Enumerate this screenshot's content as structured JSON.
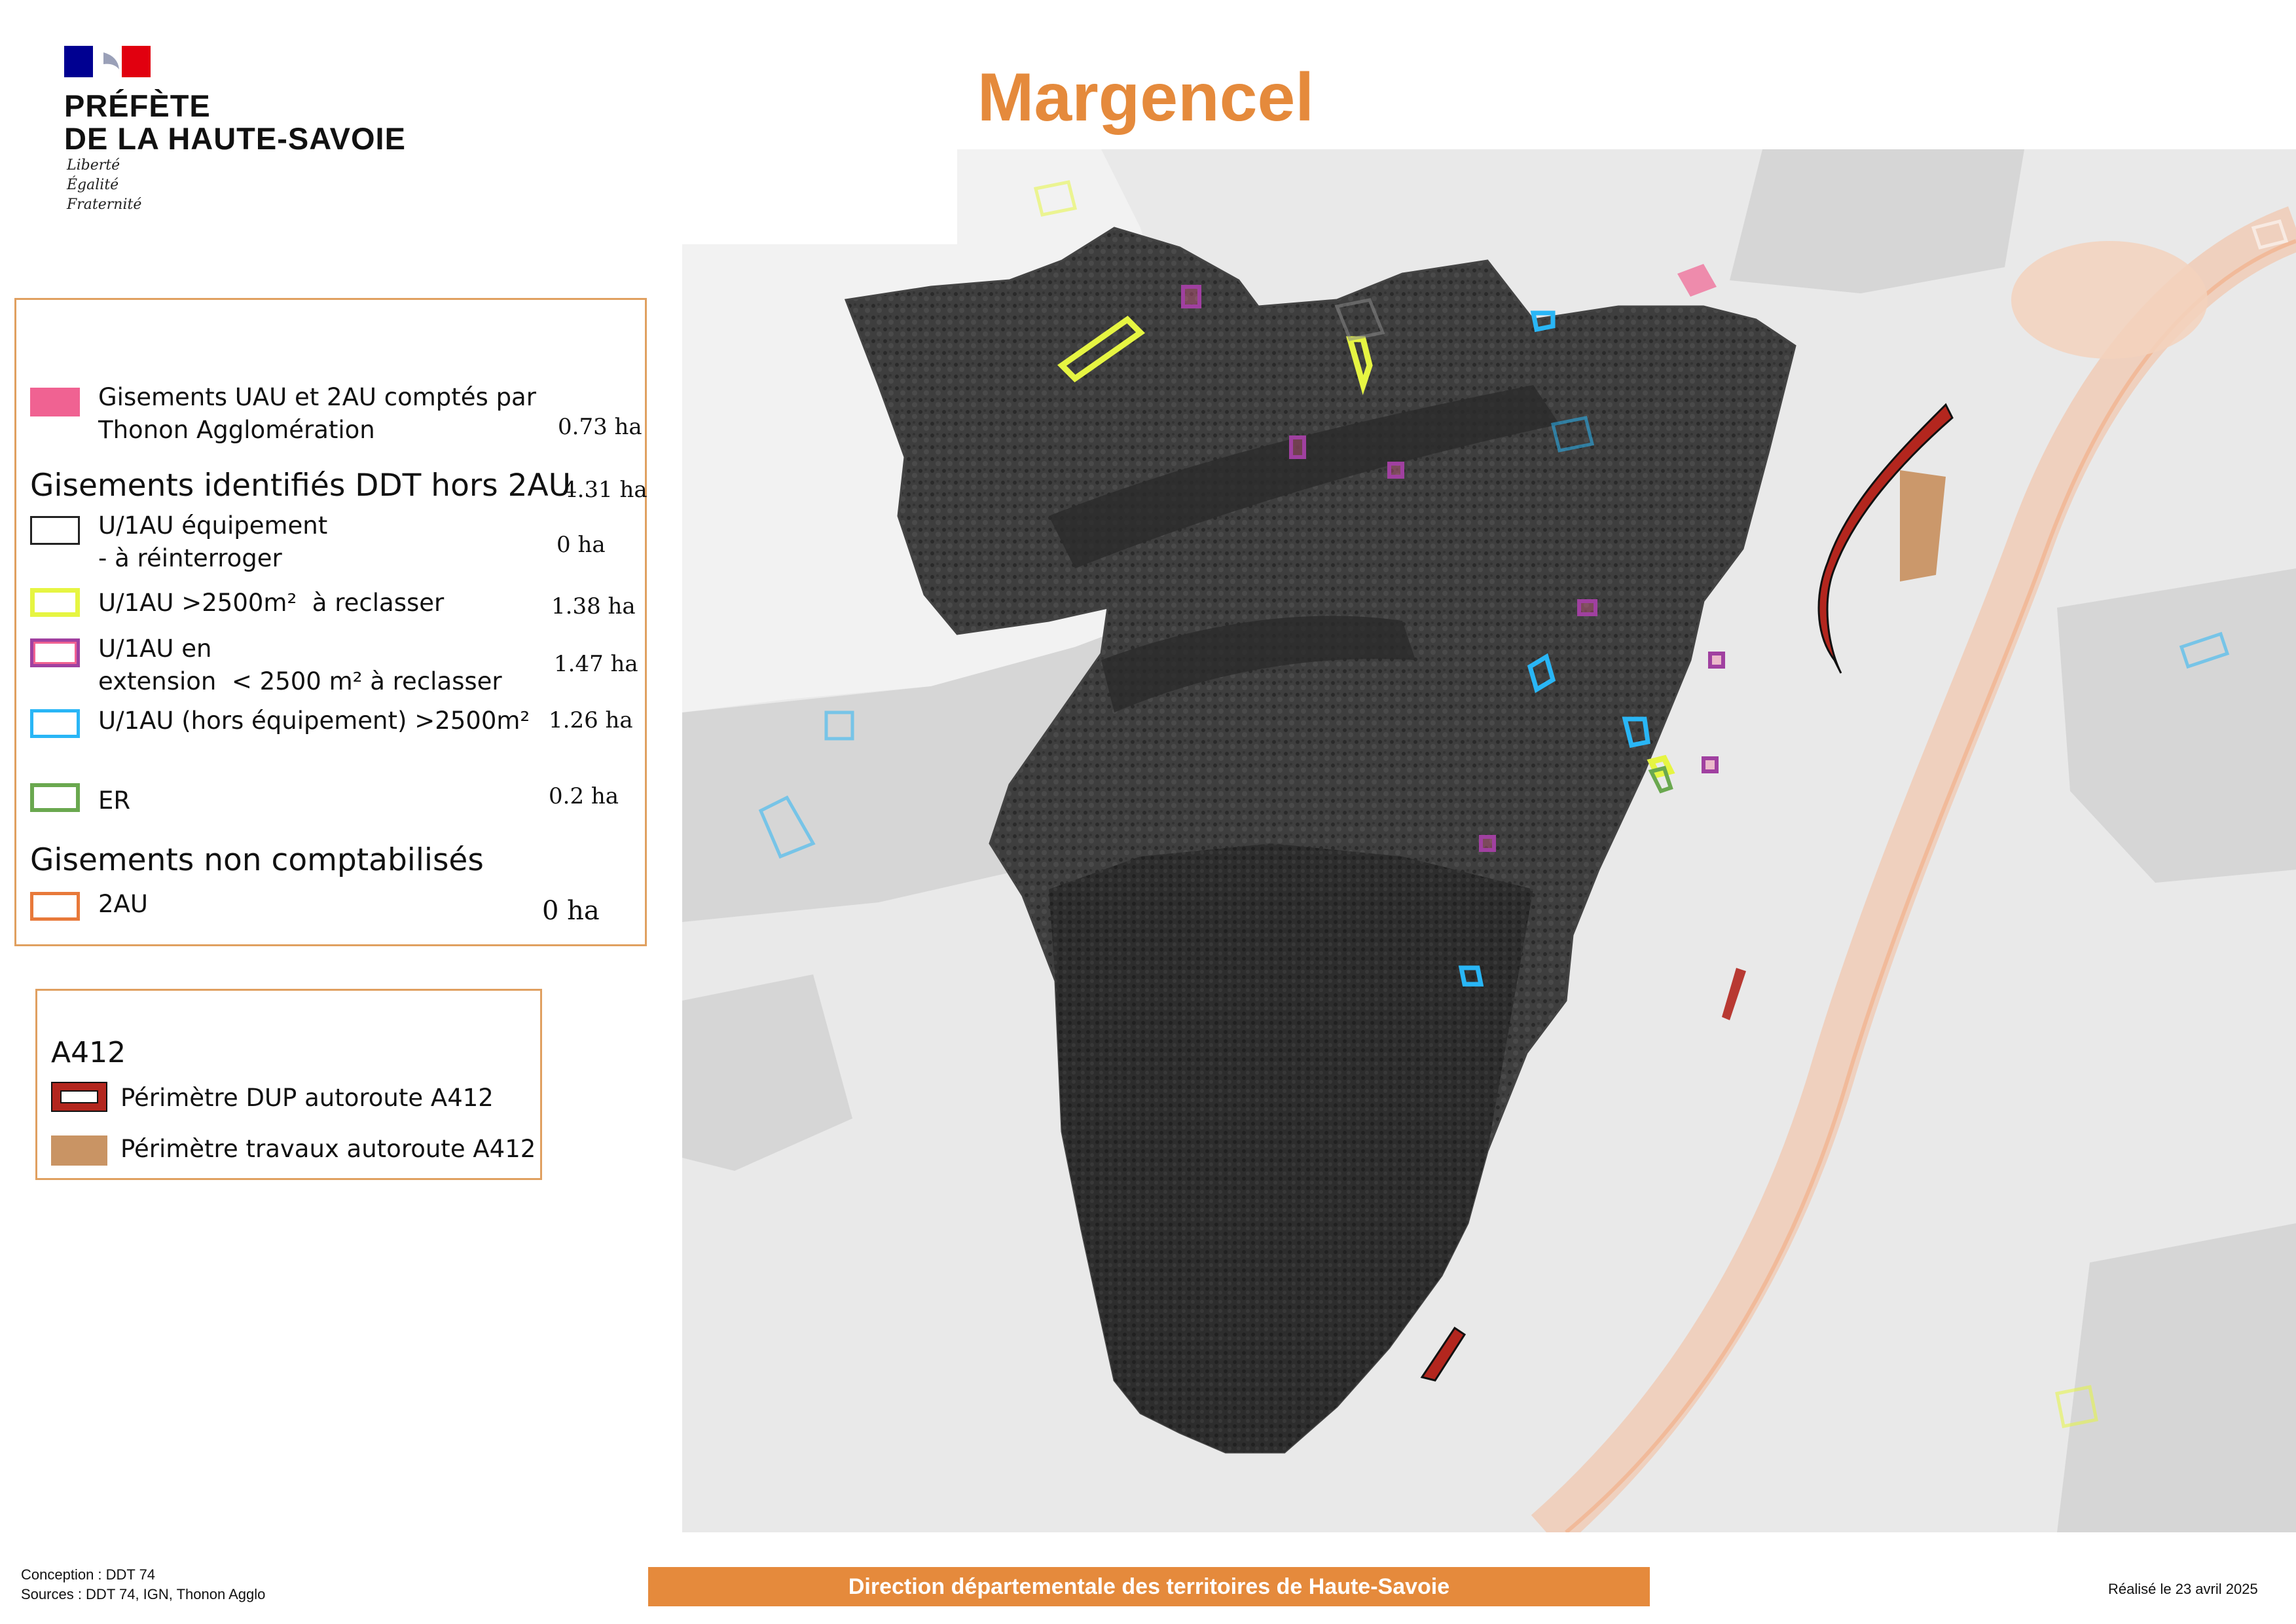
{
  "header": {
    "logo_lines": [
      "PRÉFÈTE",
      "DE LA HAUTE-SAVOIE"
    ],
    "motto": [
      "Liberté",
      "Égalité",
      "Fraternité"
    ],
    "title": "Margencel"
  },
  "legend": {
    "items": [
      {
        "label": "Gisements UAU et 2AU comptés par\nThonon Agglomération",
        "value": "0.73 ha",
        "color": "#f06292"
      },
      {
        "heading": "Gisements identifiés DDT hors 2AU",
        "value": "4.31 ha"
      },
      {
        "label": "U/1AU équipement\n- à réinterroger",
        "value": "0 ha",
        "color": "#222222"
      },
      {
        "label": "U/1AU >2500m²  à reclasser",
        "value": "1.38 ha",
        "color": "#e6f542"
      },
      {
        "label": "U/1AU en\nextension  < 2500 m² à reclasser",
        "value": "1.47 ha",
        "color": "#a040a0"
      },
      {
        "label": "U/1AU (hors équipement) >2500m²",
        "value": "1.26 ha",
        "color": "#29b6f6"
      },
      {
        "label": "ER",
        "value": "0.2 ha",
        "color": "#6aa84f"
      },
      {
        "heading": "Gisements non comptabilisés"
      },
      {
        "label": "2AU",
        "value": "0 ha",
        "color": "#e8793a"
      }
    ]
  },
  "legend_a412": {
    "title": "A412",
    "items": [
      {
        "label": "Périmètre DUP autoroute A412",
        "color": "#b3261e"
      },
      {
        "label": "Périmètre travaux autoroute A412",
        "color": "#c99464"
      }
    ]
  },
  "footer": {
    "conception": "Conception : DDT 74",
    "sources": "Sources : DDT 74, IGN, Thonon Agglo",
    "bar": "Direction départementale des territoires de Haute-Savoie",
    "date": "Réalisé le 23 avril 2025"
  },
  "colors": {
    "accent": "#e58a3c",
    "brand_blue": "#000091",
    "brand_red": "#e1000f"
  }
}
